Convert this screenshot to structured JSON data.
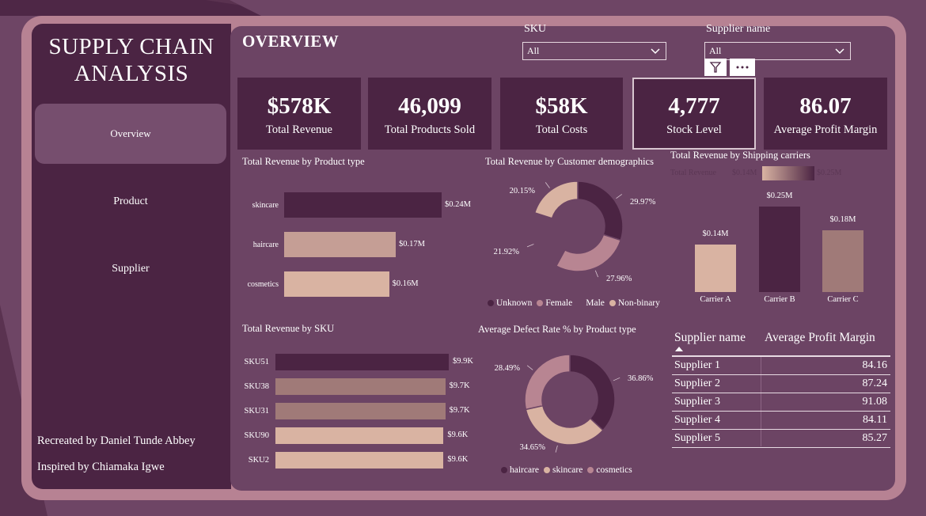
{
  "sidebar": {
    "title_line1": "SUPPLY CHAIN",
    "title_line2": "ANALYSIS",
    "nav": [
      "Overview",
      "Product",
      "Supplier"
    ],
    "credit1": "Recreated by Daniel Tunde Abbey",
    "credit2": "Inspired by Chiamaka Igwe"
  },
  "header": {
    "title": "OVERVIEW",
    "sku_label": "SKU",
    "sku_value": "All",
    "supplier_label": "Supplier name",
    "supplier_value": "All"
  },
  "kpis": [
    {
      "value": "$578K",
      "label": "Total Revenue"
    },
    {
      "value": "46,099",
      "label": "Total Products Sold"
    },
    {
      "value": "$58K",
      "label": "Total Costs"
    },
    {
      "value": "4,777",
      "label": "Stock Level"
    },
    {
      "value": "86.07",
      "label": "Average Profit Margin"
    }
  ],
  "colors": {
    "dark": "#4b2443",
    "mid": "#b88592",
    "light": "#d9b3a2",
    "rose": "#c59e95",
    "muted": "#a07a78"
  },
  "chart_data": [
    {
      "type": "bar",
      "orientation": "horizontal",
      "title": "Total Revenue by Product type",
      "categories": [
        "skincare",
        "haircare",
        "cosmetics"
      ],
      "values": [
        0.24,
        0.17,
        0.16
      ],
      "value_labels": [
        "$0.24M",
        "$0.17M",
        "$0.16M"
      ],
      "xlim": [
        0,
        0.24
      ]
    },
    {
      "type": "pie",
      "title": "Total Revenue by Customer demographics",
      "categories": [
        "Unknown",
        "Female",
        "Male",
        "Non-binary"
      ],
      "values": [
        29.97,
        27.96,
        21.92,
        20.15
      ],
      "value_labels": [
        "29.97%",
        "27.96%",
        "21.92%",
        "20.15%"
      ]
    },
    {
      "type": "bar",
      "title": "Total Revenue by Shipping carriers",
      "legend_label": "Total Revenue",
      "legend_min": "$0.14M",
      "legend_max": "$0.25M",
      "categories": [
        "Carrier A",
        "Carrier B",
        "Carrier C"
      ],
      "values": [
        0.14,
        0.25,
        0.18
      ],
      "value_labels": [
        "$0.14M",
        "$0.25M",
        "$0.18M"
      ],
      "ylim": [
        0,
        0.25
      ]
    },
    {
      "type": "bar",
      "orientation": "horizontal",
      "title": "Total Revenue by SKU",
      "categories": [
        "SKU51",
        "SKU38",
        "SKU31",
        "SKU90",
        "SKU2"
      ],
      "values": [
        9.9,
        9.7,
        9.7,
        9.6,
        9.6
      ],
      "value_labels": [
        "$9.9K",
        "$9.7K",
        "$9.7K",
        "$9.6K",
        "$9.6K"
      ],
      "xlim": [
        0,
        9.9
      ]
    },
    {
      "type": "pie",
      "title": "Average Defect Rate % by Product type",
      "categories": [
        "haircare",
        "skincare",
        "cosmetics"
      ],
      "values": [
        36.86,
        34.65,
        28.49
      ],
      "value_labels": [
        "36.86%",
        "34.65%",
        "28.49%"
      ]
    },
    {
      "type": "table",
      "columns": [
        "Supplier name",
        "Average Profit Margin"
      ],
      "rows": [
        [
          "Supplier 1",
          "84.16"
        ],
        [
          "Supplier 2",
          "87.24"
        ],
        [
          "Supplier 3",
          "91.08"
        ],
        [
          "Supplier 4",
          "84.11"
        ],
        [
          "Supplier 5",
          "85.27"
        ]
      ]
    }
  ]
}
